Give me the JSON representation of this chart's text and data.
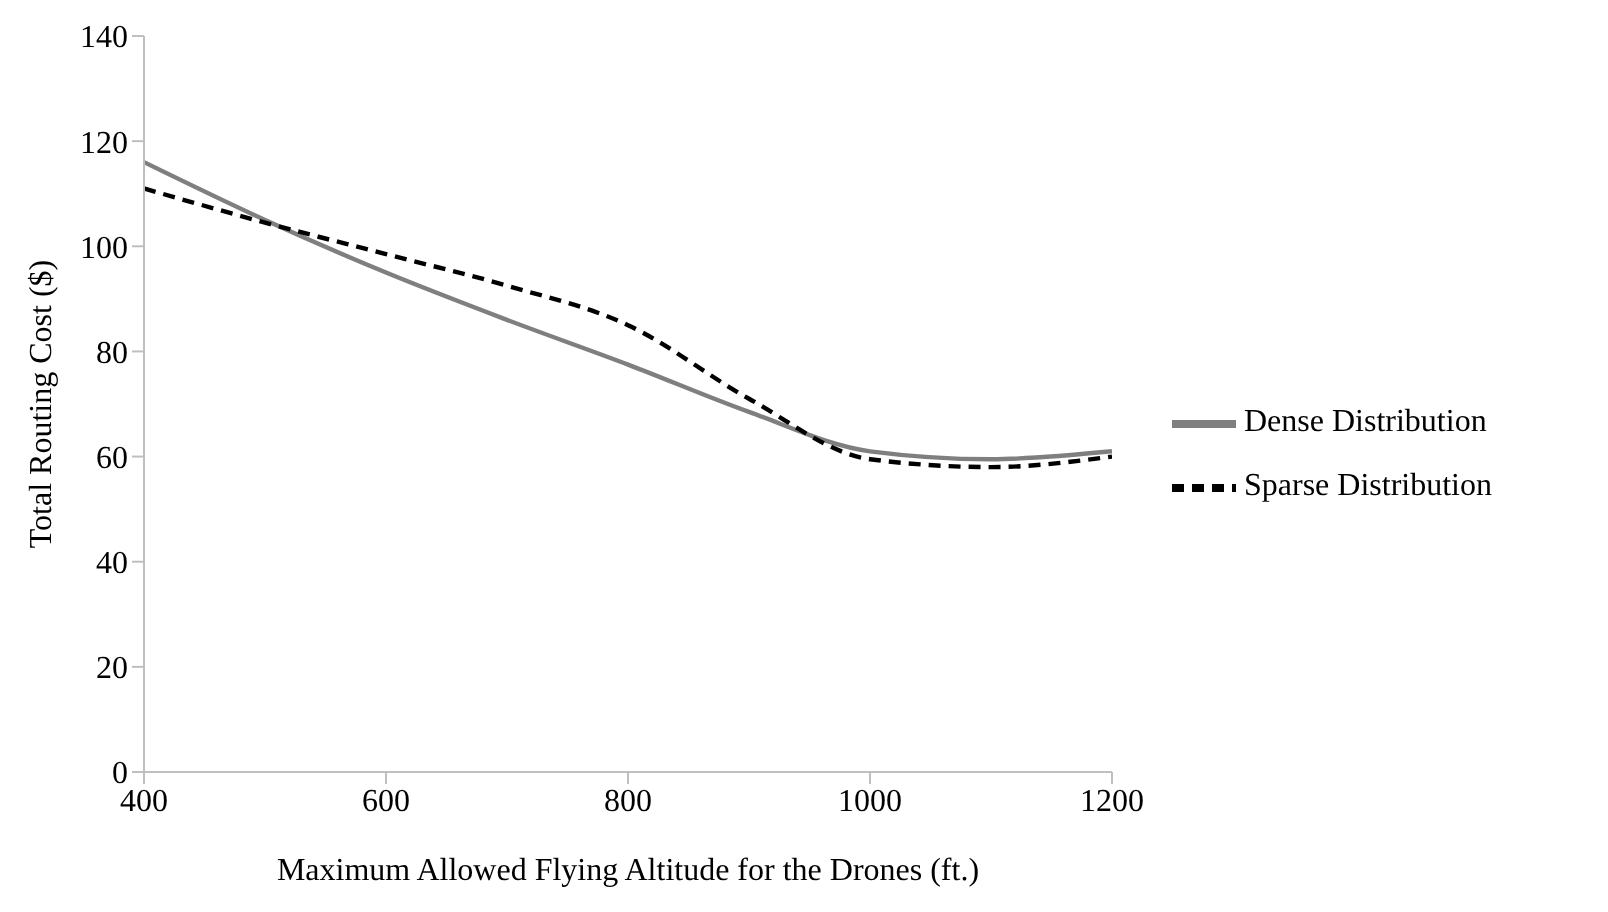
{
  "chart_data": {
    "type": "line",
    "xlabel": "Maximum Allowed Flying Altitude for the Drones (ft.)",
    "ylabel": "Total Routing Cost ($)",
    "x": [
      400,
      500,
      600,
      700,
      800,
      900,
      1000,
      1100,
      1200
    ],
    "series": [
      {
        "name": "Dense Distribution",
        "color": "#7f7f7f",
        "line_style": "solid",
        "values": [
          116,
          105,
          95,
          86,
          77.5,
          68.5,
          61,
          59.5,
          61
        ]
      },
      {
        "name": "Sparse Distribution",
        "color": "#000000",
        "line_style": "dashed",
        "values": [
          111,
          104.5,
          98.5,
          92.5,
          85,
          71,
          59.5,
          58,
          60
        ]
      }
    ],
    "xlim": [
      400,
      1200
    ],
    "xticks": [
      400,
      600,
      800,
      1000,
      1200
    ],
    "ylim": [
      0,
      140
    ],
    "yticks": [
      0,
      20,
      40,
      60,
      80,
      100,
      120,
      140
    ],
    "grid": false,
    "legend": "right",
    "marker": "none"
  }
}
